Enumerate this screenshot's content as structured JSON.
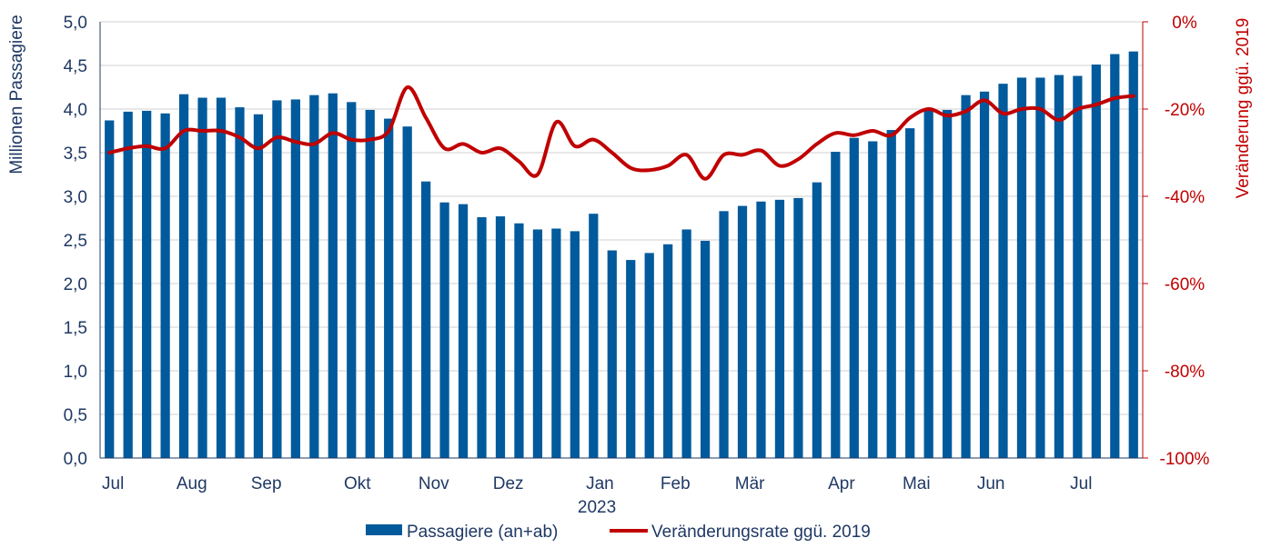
{
  "chart_data": {
    "type": "bar",
    "title": "",
    "ylabel": "Millionen Passagiere",
    "y2label": "Veränderung ggü. 2019",
    "ylim": [
      0,
      5
    ],
    "y2lim": [
      -100,
      0
    ],
    "y_ticks": [
      "0,0",
      "0,5",
      "1,0",
      "1,5",
      "2,0",
      "2,5",
      "3,0",
      "3,5",
      "4,0",
      "4,5",
      "5,0"
    ],
    "y2_ticks": [
      "-100%",
      "-80%",
      "-60%",
      "-40%",
      "-20%",
      "0%"
    ],
    "month_labels": [
      {
        "label": "Jul",
        "week": 0
      },
      {
        "label": "Aug",
        "week": 4
      },
      {
        "label": "Sep",
        "week": 8
      },
      {
        "label": "Okt",
        "week": 13
      },
      {
        "label": "Nov",
        "week": 17
      },
      {
        "label": "Dez",
        "week": 21
      },
      {
        "label": "Jan",
        "week": 26
      },
      {
        "label": "Feb",
        "week": 30
      },
      {
        "label": "Mär",
        "week": 34
      },
      {
        "label": "Apr",
        "week": 39
      },
      {
        "label": "Mai",
        "week": 43
      },
      {
        "label": "Jun",
        "week": 47
      },
      {
        "label": "Jul",
        "week": 52
      }
    ],
    "year_label": "2023",
    "grid": true,
    "legend_position": "bottom",
    "series": [
      {
        "name": "Passagiere (an+ab)",
        "type": "bar",
        "axis": "left",
        "color": "#005a9c",
        "values": [
          3.87,
          3.97,
          3.98,
          3.95,
          4.17,
          4.13,
          4.13,
          4.02,
          3.94,
          4.1,
          4.11,
          4.16,
          4.18,
          4.08,
          3.99,
          3.89,
          3.8,
          3.17,
          2.93,
          2.91,
          2.76,
          2.77,
          2.69,
          2.62,
          2.63,
          2.6,
          2.8,
          2.38,
          2.27,
          2.35,
          2.45,
          2.62,
          2.49,
          2.83,
          2.89,
          2.94,
          2.96,
          2.98,
          3.16,
          3.51,
          3.67,
          3.63,
          3.76,
          3.78,
          4.0,
          3.99,
          4.16,
          4.2,
          4.29,
          4.36,
          4.36,
          4.39,
          4.38,
          4.51,
          4.63,
          4.66
        ]
      },
      {
        "name": "Veränderungsrate ggü. 2019",
        "type": "line",
        "axis": "right",
        "color": "#c00000",
        "values": [
          -30.0,
          -29.0,
          -28.5,
          -29.0,
          -25.0,
          -25.0,
          -25.0,
          -26.5,
          -29.0,
          -26.5,
          -27.5,
          -28.0,
          -25.5,
          -27.0,
          -27.0,
          -25.0,
          -15.0,
          -22.0,
          -29.0,
          -28.0,
          -30.0,
          -29.0,
          -32.0,
          -35.0,
          -23.0,
          -28.5,
          -27.0,
          -30.0,
          -33.5,
          -34.0,
          -33.0,
          -30.5,
          -36.0,
          -30.5,
          -30.5,
          -29.5,
          -33.0,
          -31.5,
          -28.0,
          -25.5,
          -26.0,
          -25.0,
          -26.0,
          -22.0,
          -20.0,
          -21.5,
          -20.5,
          -18.0,
          -21.0,
          -20.0,
          -20.0,
          -22.5,
          -20.0,
          -19.0,
          -17.5,
          -17.0
        ]
      }
    ]
  }
}
